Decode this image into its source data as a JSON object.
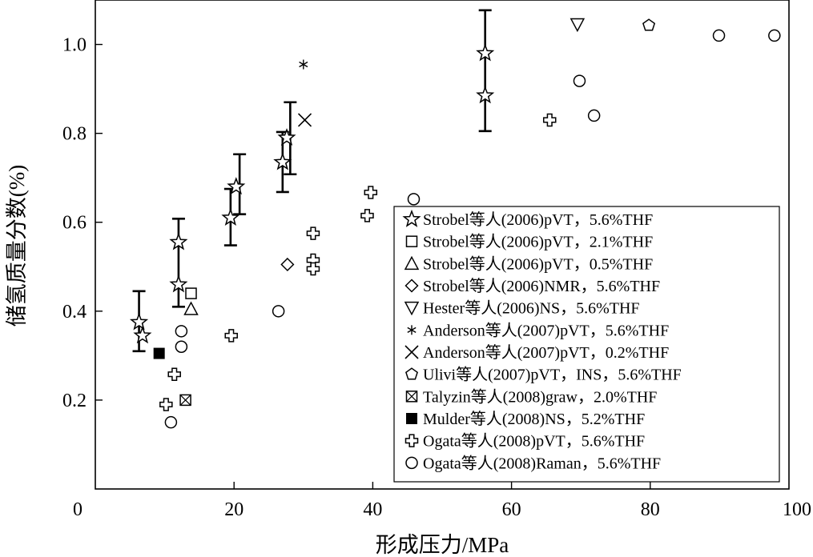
{
  "chart_data": {
    "type": "scatter",
    "xlabel": "形成压力/MPa",
    "ylabel": "储氢质量分数(%)",
    "xlim": [
      0,
      100
    ],
    "ylim": [
      0,
      1.1
    ],
    "xticks": [
      0,
      20,
      40,
      60,
      80,
      100
    ],
    "yticks": [
      0.2,
      0.4,
      0.6,
      0.8,
      1.0
    ],
    "xtick_labels": [
      "0",
      "20",
      "40",
      "60",
      "80",
      "100"
    ],
    "ytick_labels": [
      "0.2",
      "0.4",
      "0.6",
      "0.8",
      "1.0"
    ],
    "grid": false,
    "legend_position": "lower-right",
    "series": [
      {
        "name": "Strobel等人(2006)pVT，5.6%THF",
        "marker": "star",
        "points": [
          [
            6.3,
            0.375
          ],
          [
            6.8,
            0.345
          ],
          [
            12,
            0.555
          ],
          [
            12,
            0.46
          ],
          [
            19.5,
            0.61
          ],
          [
            20.3,
            0.68
          ],
          [
            27,
            0.735
          ],
          [
            27.6,
            0.79
          ],
          [
            56.2,
            0.98
          ],
          [
            56.2,
            0.885
          ]
        ],
        "errors": [
          [
            6.3,
            0.31,
            0.445
          ],
          [
            12,
            0.41,
            0.608
          ],
          [
            19.5,
            0.548,
            0.675
          ],
          [
            20.8,
            0.618,
            0.753
          ],
          [
            27,
            0.668,
            0.803
          ],
          [
            28.1,
            0.708,
            0.87
          ],
          [
            56.2,
            0.805,
            1.077
          ]
        ]
      },
      {
        "name": "Strobel等人(2006)pVT，2.1%THF",
        "marker": "square",
        "points": [
          [
            13.8,
            0.44
          ]
        ]
      },
      {
        "name": "Strobel等人(2006)pVT，0.5%THF",
        "marker": "triangle-up",
        "points": [
          [
            13.8,
            0.405
          ]
        ]
      },
      {
        "name": "Strobel等人(2006)NMR，5.6%THF",
        "marker": "diamond",
        "points": [
          [
            27.7,
            0.505
          ]
        ]
      },
      {
        "name": "Hester等人(2006)NS，5.6%THF",
        "marker": "triangle-down",
        "points": [
          [
            69.5,
            1.045
          ]
        ]
      },
      {
        "name": "Anderson等人(2007)pVT，5.6%THF",
        "marker": "asterisk",
        "points": [
          [
            30,
            0.955
          ]
        ]
      },
      {
        "name": "Anderson等人(2007)pVT，0.2%THF",
        "marker": "x",
        "points": [
          [
            30.2,
            0.83
          ]
        ]
      },
      {
        "name": "Ulivi等人(2007)pVT，INS，5.6%THF",
        "marker": "pentagon",
        "points": [
          [
            79.8,
            1.043
          ]
        ]
      },
      {
        "name": "Talyzin等人(2008)graw，2.0%THF",
        "marker": "square-x",
        "points": [
          [
            13,
            0.2
          ]
        ]
      },
      {
        "name": "Mulder等人(2008)NS，5.2%THF",
        "marker": "filled-square",
        "points": [
          [
            9.2,
            0.305
          ]
        ]
      },
      {
        "name": "Ogata等人(2008)pVT，5.6%THF",
        "marker": "cross",
        "points": [
          [
            10.2,
            0.19
          ],
          [
            11.4,
            0.258
          ],
          [
            19.6,
            0.345
          ],
          [
            31.4,
            0.575
          ],
          [
            31.4,
            0.515
          ],
          [
            31.4,
            0.495
          ],
          [
            39.7,
            0.667
          ],
          [
            39.2,
            0.615
          ],
          [
            65.5,
            0.83
          ]
        ]
      },
      {
        "name": "Ogata等人(2008)Raman，5.6%THF",
        "marker": "circle",
        "points": [
          [
            10.9,
            0.15
          ],
          [
            12.4,
            0.355
          ],
          [
            12.4,
            0.32
          ],
          [
            26.4,
            0.4
          ],
          [
            45.9,
            0.652
          ],
          [
            69.8,
            0.918
          ],
          [
            71.9,
            0.84
          ],
          [
            89.9,
            1.02
          ],
          [
            97.9,
            1.02
          ]
        ]
      }
    ]
  }
}
